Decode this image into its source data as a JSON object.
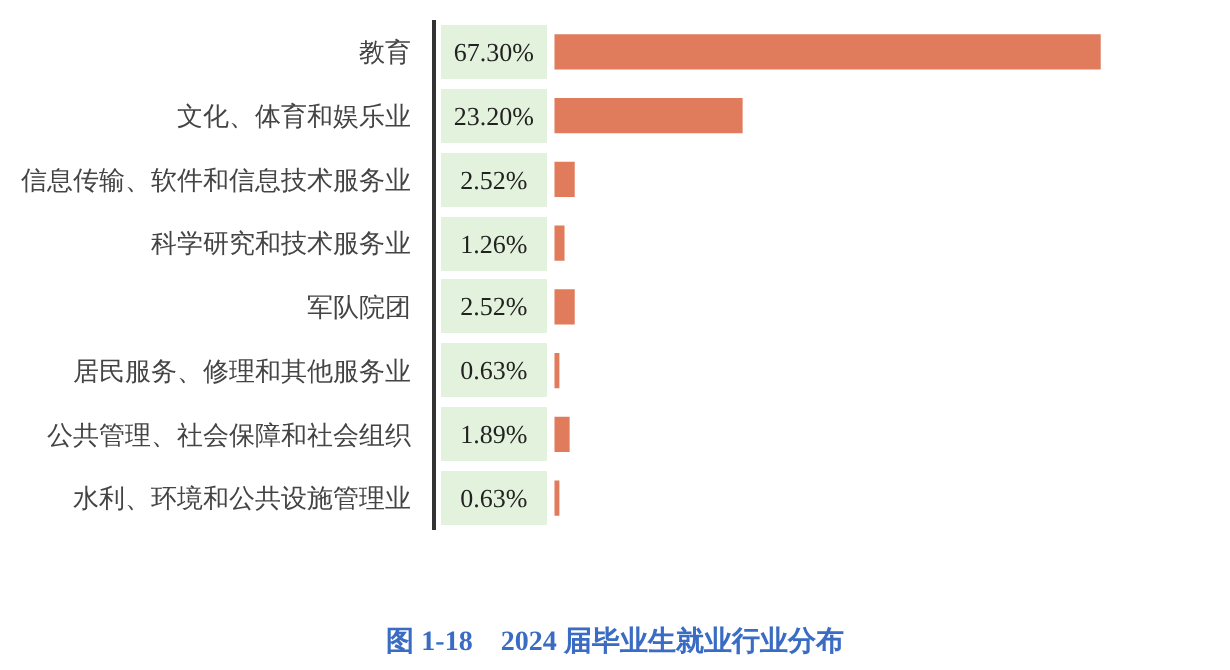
{
  "chart_data": {
    "type": "bar",
    "orientation": "horizontal",
    "title": "图 1-18　2024 届毕业生就业行业分布",
    "categories": [
      "教育",
      "文化、体育和娱乐业",
      "信息传输、软件和信息技术服务业",
      "科学研究和技术服务业",
      "军队院团",
      "居民服务、修理和其他服务业",
      "公共管理、社会保障和社会组织",
      "水利、环境和公共设施管理业"
    ],
    "values": [
      67.3,
      23.2,
      2.52,
      1.26,
      2.52,
      0.63,
      1.89,
      0.63
    ],
    "value_labels": [
      "67.30%",
      "23.20%",
      "2.52%",
      "1.26%",
      "2.52%",
      "0.63%",
      "1.89%",
      "0.63%"
    ],
    "color": "#e07b5c"
  }
}
